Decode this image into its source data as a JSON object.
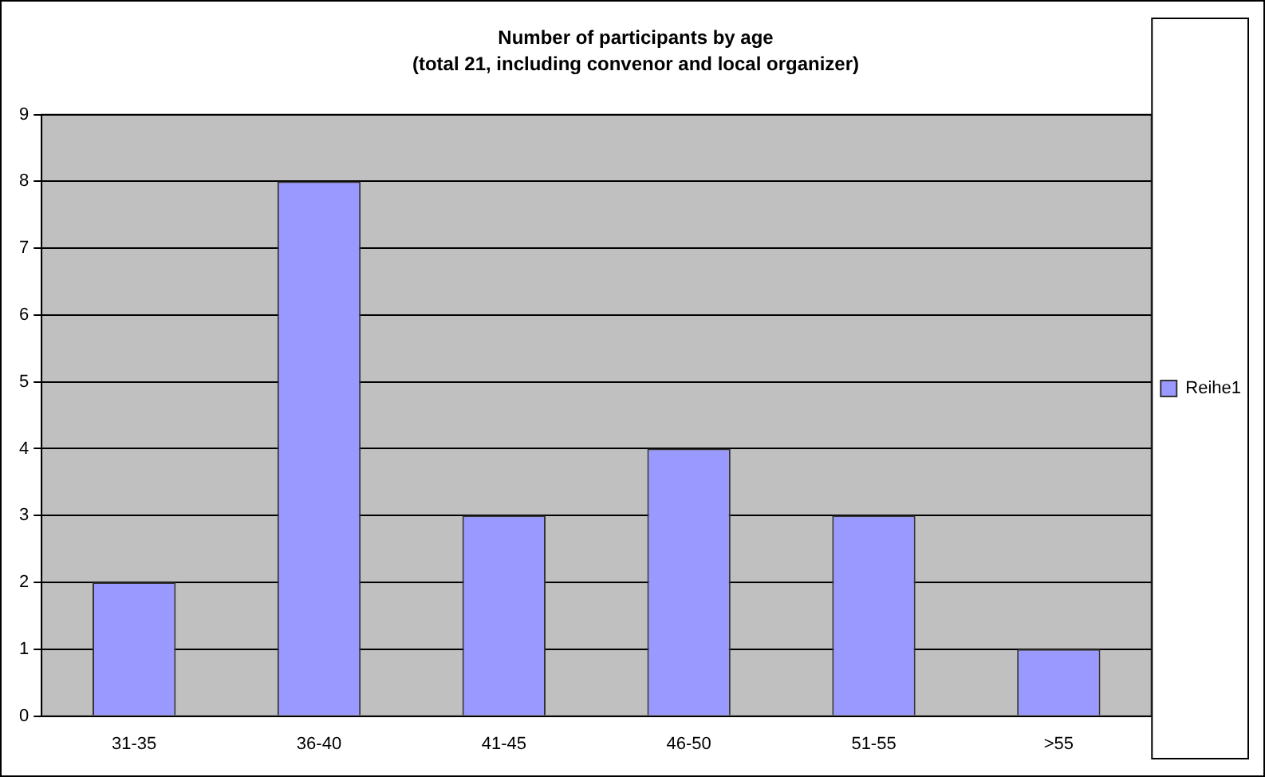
{
  "chart_data": {
    "type": "bar",
    "title": "Number of participants by age",
    "subtitle": "(total 21, including convenor and local organizer)",
    "categories": [
      "31-35",
      "36-40",
      "41-45",
      "46-50",
      "51-55",
      ">55"
    ],
    "series": [
      {
        "name": "Reihe1",
        "color": "#9999ff",
        "values": [
          2,
          8,
          3,
          4,
          3,
          1
        ]
      }
    ],
    "ylim": [
      0,
      9
    ],
    "yticks": [
      0,
      1,
      2,
      3,
      4,
      5,
      6,
      7,
      8,
      9
    ],
    "grid": "y",
    "legend": "right"
  }
}
